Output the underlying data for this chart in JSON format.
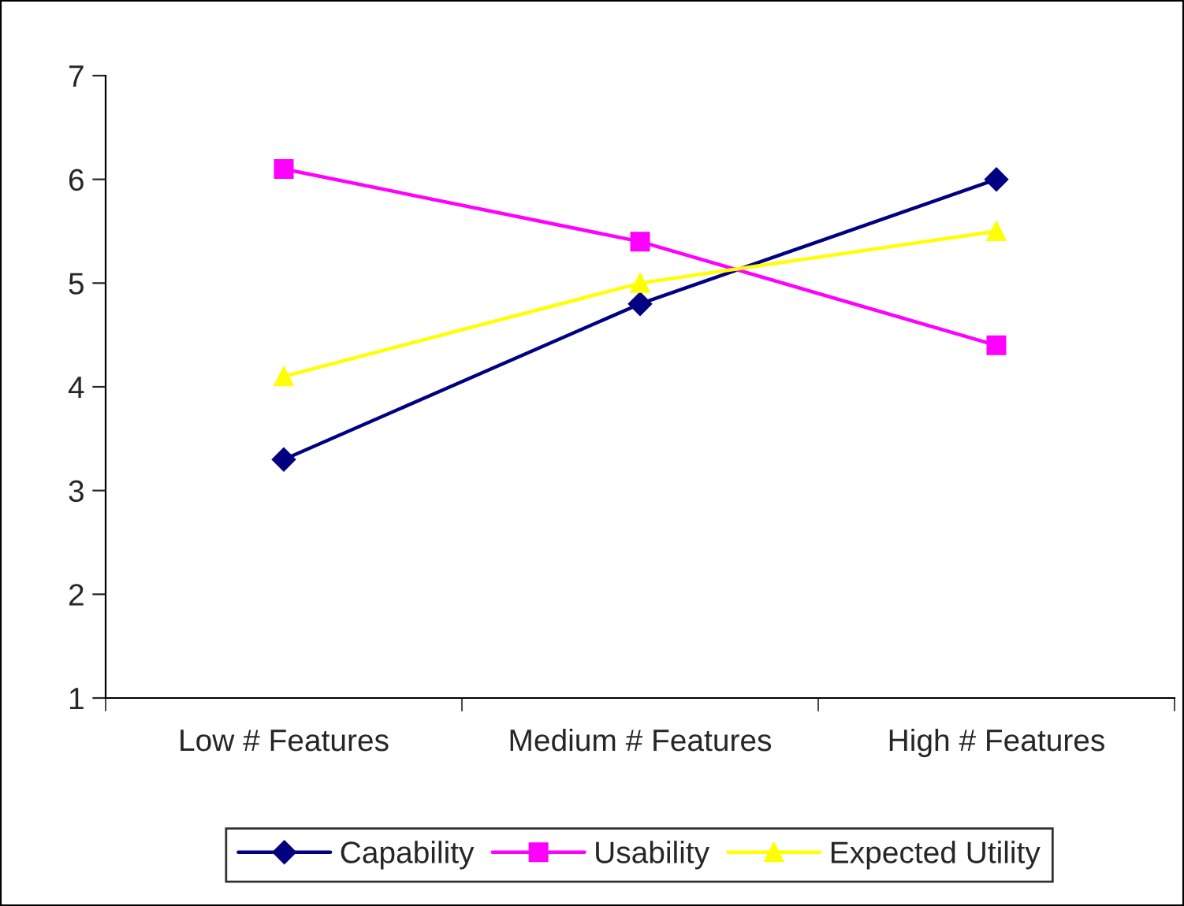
{
  "chart_data": {
    "type": "line",
    "categories": [
      "Low # Features",
      "Medium # Features",
      "High # Features"
    ],
    "series": [
      {
        "name": "Capability",
        "color": "#000080",
        "marker": "diamond",
        "values": [
          3.3,
          4.8,
          6.0
        ]
      },
      {
        "name": "Usability",
        "color": "#ff00ff",
        "marker": "square",
        "values": [
          6.1,
          5.4,
          4.4
        ]
      },
      {
        "name": "Expected Utility",
        "color": "#ffff00",
        "marker": "triangle",
        "values": [
          4.1,
          5.0,
          5.5
        ]
      }
    ],
    "ylim": [
      1,
      7
    ],
    "yticks": [
      1,
      2,
      3,
      4,
      5,
      6,
      7
    ],
    "grid": false,
    "legend": "bottom",
    "line_style": "solid"
  }
}
